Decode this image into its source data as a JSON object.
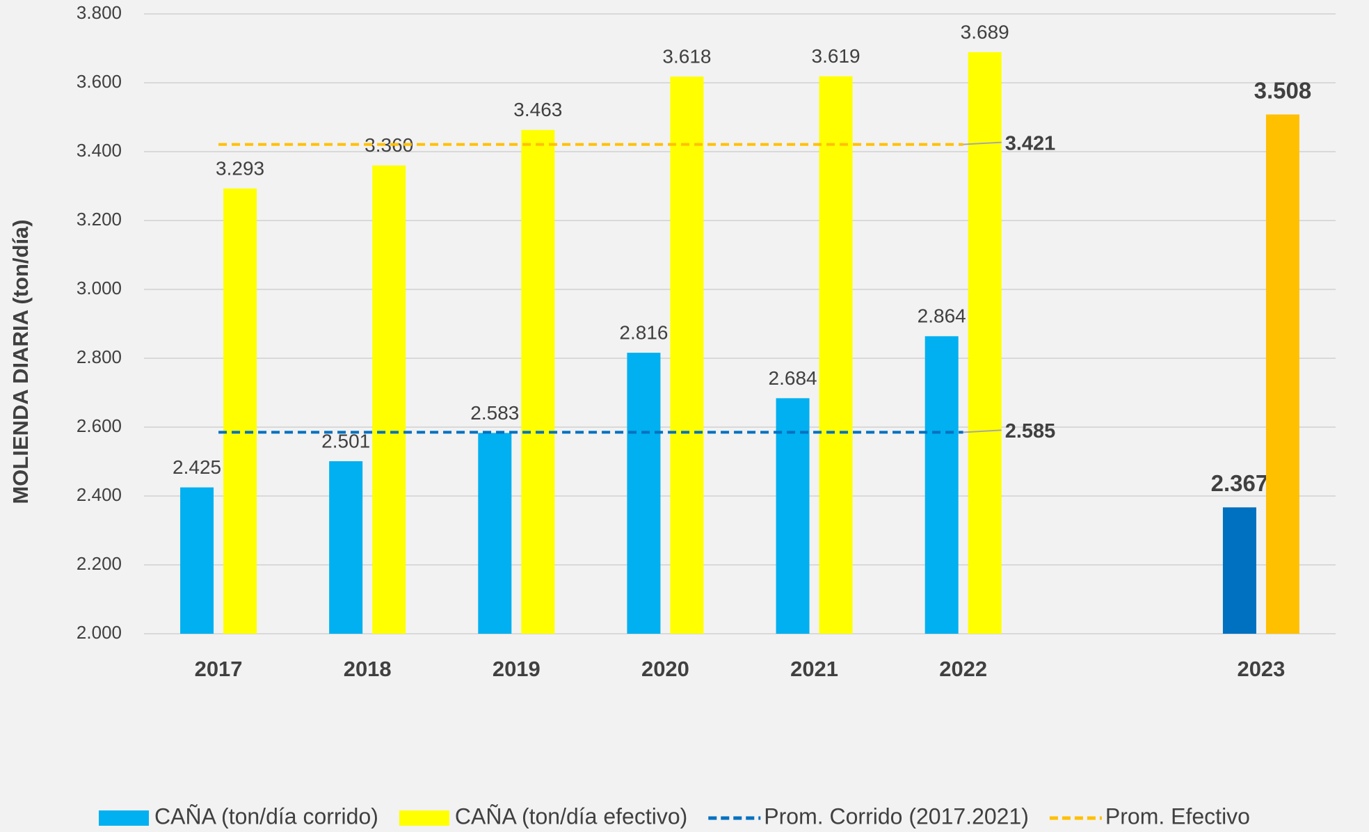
{
  "chart_data": {
    "type": "bar",
    "y_axis_label": "MOLIENDA DIARIA (ton/día)",
    "categories": [
      "2017",
      "2018",
      "2019",
      "2020",
      "2021",
      "2022",
      null,
      "2023"
    ],
    "series": [
      {
        "name": "CAÑA (ton/día corrido)",
        "color": "#00b0f0",
        "colors": [
          "#00b0f0",
          "#00b0f0",
          "#00b0f0",
          "#00b0f0",
          "#00b0f0",
          "#00b0f0",
          "#00b0f0",
          "#0070c0"
        ],
        "values": [
          2425,
          2501,
          2583,
          2816,
          2684,
          2864,
          null,
          2367
        ],
        "value_labels": [
          "2.425",
          "2.501",
          "2.583",
          "2.816",
          "2.684",
          "2.864",
          null,
          "2.367"
        ]
      },
      {
        "name": "CAÑA (ton/día efectivo)",
        "color": "#ffff00",
        "colors": [
          "#ffff00",
          "#ffff00",
          "#ffff00",
          "#ffff00",
          "#ffff00",
          "#ffff00",
          "#ffff00",
          "#ffc000"
        ],
        "values": [
          3293,
          3360,
          3463,
          3618,
          3619,
          3689,
          null,
          3508
        ],
        "value_labels": [
          "3.293",
          "3.360",
          "3.463",
          "3.618",
          "3.619",
          "3.689",
          null,
          "3.508"
        ]
      }
    ],
    "reference_lines": [
      {
        "name": "Prom. Corrido (2017.2021)",
        "color": "#0070c0",
        "value": 2585,
        "value_label": "2.585"
      },
      {
        "name": "Prom. Efectivo",
        "color": "#ffc000",
        "value": 3421,
        "value_label": "3.421"
      }
    ],
    "ylim": [
      2000,
      3800
    ],
    "yticks": [
      {
        "value": 2000,
        "label": "2.000"
      },
      {
        "value": 2200,
        "label": "2.200"
      },
      {
        "value": 2400,
        "label": "2.400"
      },
      {
        "value": 2600,
        "label": "2.600"
      },
      {
        "value": 2800,
        "label": "2.800"
      },
      {
        "value": 3000,
        "label": "3.000"
      },
      {
        "value": 3200,
        "label": "3.200"
      },
      {
        "value": 3400,
        "label": "3.400"
      },
      {
        "value": 3600,
        "label": "3.600"
      },
      {
        "value": 3800,
        "label": "3.800"
      }
    ],
    "grid": true,
    "legend": "bottom"
  }
}
